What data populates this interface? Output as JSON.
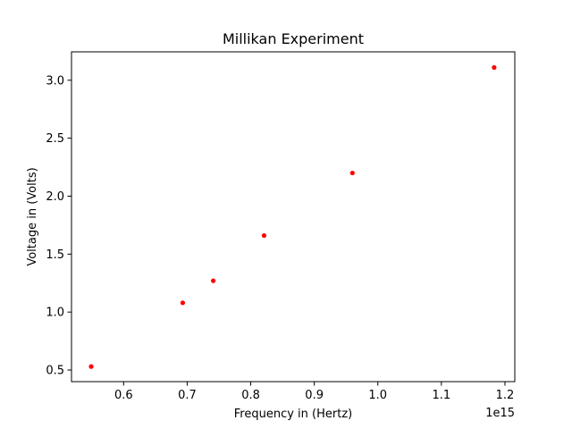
{
  "chart_data": {
    "type": "scatter",
    "title": "Millikan Experiment",
    "xlabel": "Frequency in (Hertz)",
    "ylabel": "Voltage in (Volts)",
    "x_offset_label": "1e15",
    "x_scale": 1000000000000000.0,
    "xlim": [
      518000000000000.0,
      1215500000000000.0
    ],
    "ylim": [
      0.4,
      3.245
    ],
    "x_ticks": [
      0.6,
      0.7,
      0.8,
      0.9,
      1.0,
      1.1,
      1.2
    ],
    "x_tick_labels": [
      "0.6",
      "0.7",
      "0.8",
      "0.9",
      "1.0",
      "1.1",
      "1.2"
    ],
    "y_ticks": [
      0.5,
      1.0,
      1.5,
      2.0,
      2.5,
      3.0
    ],
    "y_tick_labels": [
      "0.5",
      "1.0",
      "1.5",
      "2.0",
      "2.5",
      "3.0"
    ],
    "grid": false,
    "legend": "none",
    "series": [
      {
        "color": "#ff0000",
        "marker": "point",
        "x": [
          549000000000000.0,
          693000000000000.0,
          741000000000000.0,
          821000000000000.0,
          960000000000000.0,
          1183000000000000.0
        ],
        "y": [
          0.53,
          1.08,
          1.27,
          1.66,
          2.2,
          3.11
        ]
      }
    ]
  }
}
